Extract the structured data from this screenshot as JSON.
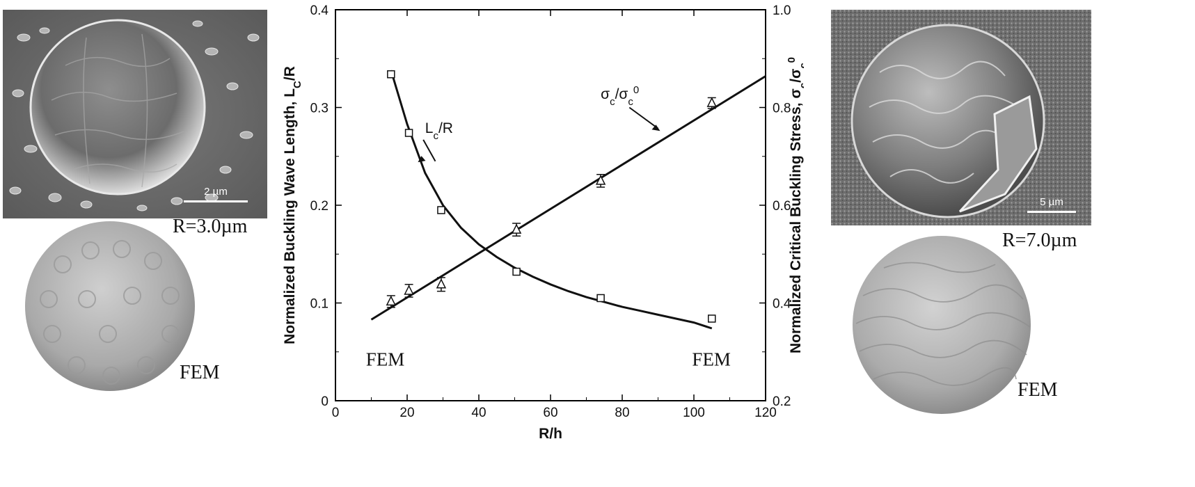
{
  "left_panel": {
    "scale_bar_label": "2 µm",
    "radius_label": "R=3.0µm",
    "fem_label": "FEM"
  },
  "right_panel": {
    "scale_bar_label": "5 µm",
    "radius_label": "R=7.0µm",
    "fem_label": "FEM"
  },
  "chart_data": {
    "type": "scatter",
    "xlabel": "R/h",
    "ylabel_left": "Normalized Buckling Wave Length, L_C/R",
    "ylabel_right": "Normalized Critical Buckling Stress, σ_c/σ_c^0",
    "xlim": [
      0,
      120
    ],
    "ylim_left": [
      0,
      0.4
    ],
    "ylim_right": [
      0.2,
      1.0
    ],
    "x_ticks": [
      "0",
      "20",
      "40",
      "60",
      "80",
      "100",
      "120"
    ],
    "y_ticks_left": [
      "0",
      "0.1",
      "0.2",
      "0.3",
      "0.4"
    ],
    "y_ticks_right": [
      "0.2",
      "0.4",
      "0.6",
      "0.8",
      "1.0"
    ],
    "grid": false,
    "series": [
      {
        "name": "L_c/R",
        "axis": "left",
        "marker": "square",
        "x": [
          15.5,
          20.5,
          29.5,
          50.5,
          74,
          105
        ],
        "y": [
          0.334,
          0.274,
          0.195,
          0.132,
          0.105,
          0.084
        ],
        "fit_x": [
          15.5,
          20,
          25,
          30,
          35,
          40,
          45,
          50,
          55,
          60,
          65,
          70,
          75,
          80,
          85,
          90,
          95,
          100,
          105
        ],
        "fit_y": [
          0.338,
          0.283,
          0.233,
          0.2,
          0.177,
          0.16,
          0.147,
          0.136,
          0.127,
          0.119,
          0.112,
          0.106,
          0.101,
          0.096,
          0.092,
          0.088,
          0.084,
          0.08,
          0.074
        ]
      },
      {
        "name": "σ_c/σ_c^0",
        "axis": "right",
        "marker": "triangle",
        "x": [
          15.5,
          20.5,
          29.5,
          50.5,
          74,
          105
        ],
        "y": [
          0.403,
          0.425,
          0.438,
          0.55,
          0.65,
          0.809
        ],
        "err": [
          0.012,
          0.013,
          0.014,
          0.013,
          0.013,
          0.011
        ],
        "fit_x": [
          10,
          120
        ],
        "fit_y": [
          0.366,
          0.864
        ]
      }
    ],
    "annotations": [
      {
        "text": "L_c/R",
        "target_series": 0
      },
      {
        "text": "σ_c/σ_c^0",
        "target_series": 1
      },
      {
        "text": "FEM",
        "position": "lower-left"
      },
      {
        "text": "FEM",
        "position": "lower-right"
      }
    ]
  }
}
